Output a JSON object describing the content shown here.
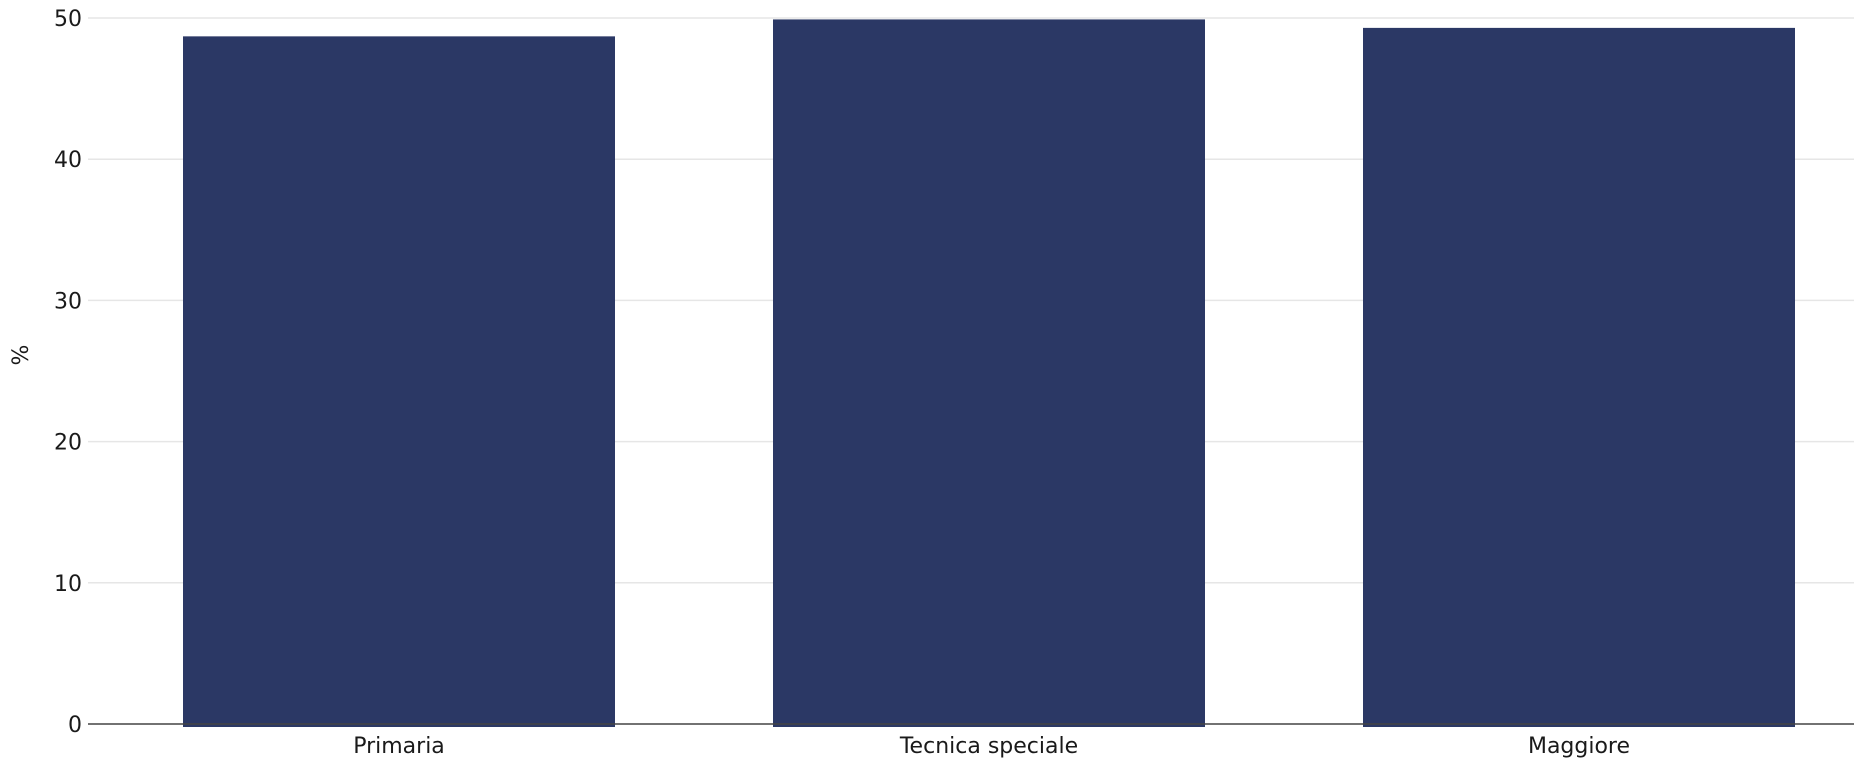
{
  "chart_data": {
    "type": "bar",
    "categories": [
      "Primaria",
      "Tecnica speciale",
      "Maggiore"
    ],
    "values": [
      48.7,
      49.9,
      49.3
    ],
    "xlabel": "",
    "ylabel": "%",
    "ylim": [
      0,
      50
    ],
    "yticks": [
      0,
      10,
      20,
      30,
      40,
      50
    ],
    "grid": true,
    "legend": "none",
    "colors": {
      "bar": "#2b3865",
      "grid": "#e6e6e6",
      "baseline": "#444444",
      "text": "#1a1a1a"
    }
  }
}
